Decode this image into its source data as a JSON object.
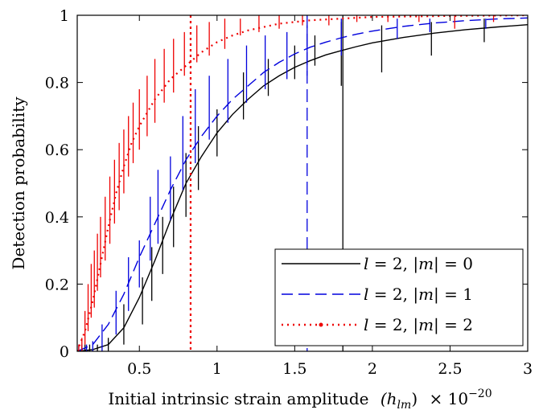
{
  "chart_data": {
    "type": "line",
    "title": "",
    "xlabel": "Initial intrinsic strain amplitude (h_lm) × 10⁻²⁰",
    "xlabel_text": "Initial intrinsic strain amplitude",
    "xlabel_symbol": "(h",
    "xlabel_subscript": "lm",
    "xlabel_close": ")",
    "x_multiplier": "× 10",
    "x_multiplier_exp": "−20",
    "ylabel": "Detection probability",
    "xlim": [
      0.1,
      3.0
    ],
    "ylim": [
      0,
      1
    ],
    "xticks": [
      "0.5",
      "1",
      "1.5",
      "2",
      "2.5",
      "3"
    ],
    "xtick_values": [
      0.5,
      1,
      1.5,
      2,
      2.5,
      3
    ],
    "yticks": [
      "0",
      "0.2",
      "0.4",
      "0.6",
      "0.8",
      "1"
    ],
    "ytick_values": [
      0,
      0.2,
      0.4,
      0.6,
      0.8,
      1
    ],
    "grid": false,
    "legend_position": "bottom-right",
    "series": [
      {
        "name": "l = 2, |m| = 0",
        "color": "#000000",
        "style": "solid",
        "curve": {
          "x": [
            0.1,
            0.2,
            0.3,
            0.4,
            0.5,
            0.6,
            0.7,
            0.8,
            0.9,
            1.0,
            1.1,
            1.2,
            1.3,
            1.4,
            1.5,
            1.6,
            1.7,
            1.8,
            1.9,
            2.0,
            2.2,
            2.4,
            2.6,
            2.8,
            3.0
          ],
          "y": [
            0.0,
            0.005,
            0.02,
            0.07,
            0.16,
            0.27,
            0.39,
            0.5,
            0.58,
            0.65,
            0.705,
            0.75,
            0.79,
            0.82,
            0.845,
            0.865,
            0.882,
            0.895,
            0.907,
            0.918,
            0.934,
            0.947,
            0.957,
            0.965,
            0.972
          ]
        },
        "error_bars": {
          "x": [
            0.13,
            0.15,
            0.18,
            0.23,
            0.3,
            0.4,
            0.52,
            0.58,
            0.65,
            0.72,
            0.8,
            0.88,
            1.0,
            1.17,
            1.33,
            1.5,
            1.63,
            1.8,
            2.06,
            2.38,
            2.72
          ],
          "ylow": [
            0.0,
            0.0,
            0.0,
            0.0,
            0.0,
            0.02,
            0.08,
            0.15,
            0.23,
            0.31,
            0.4,
            0.48,
            0.58,
            0.69,
            0.76,
            0.81,
            0.85,
            0.79,
            0.83,
            0.88,
            0.92
          ],
          "yhigh": [
            0.02,
            0.02,
            0.02,
            0.02,
            0.04,
            0.14,
            0.22,
            0.31,
            0.4,
            0.49,
            0.59,
            0.67,
            0.72,
            0.83,
            0.87,
            0.91,
            0.94,
            0.98,
            0.97,
            0.98,
            0.99
          ]
        },
        "vline_x": 1.81
      },
      {
        "name": "l = 2, |m| = 1",
        "color": "#0000dd",
        "style": "dashed",
        "curve": {
          "x": [
            0.1,
            0.2,
            0.3,
            0.4,
            0.5,
            0.6,
            0.7,
            0.8,
            0.9,
            1.0,
            1.1,
            1.2,
            1.3,
            1.4,
            1.5,
            1.6,
            1.7,
            1.8,
            1.9,
            2.0,
            2.2,
            2.4,
            2.6,
            2.8,
            3.0
          ],
          "y": [
            0.0,
            0.02,
            0.08,
            0.17,
            0.28,
            0.38,
            0.48,
            0.57,
            0.64,
            0.7,
            0.75,
            0.79,
            0.83,
            0.86,
            0.885,
            0.905,
            0.92,
            0.933,
            0.944,
            0.953,
            0.967,
            0.977,
            0.984,
            0.989,
            0.992
          ]
        },
        "error_bars": {
          "x": [
            0.11,
            0.13,
            0.16,
            0.2,
            0.26,
            0.35,
            0.43,
            0.5,
            0.57,
            0.62,
            0.7,
            0.78,
            0.86,
            0.95,
            1.07,
            1.19,
            1.31,
            1.45,
            1.58,
            1.8,
            2.16,
            2.37,
            2.73
          ],
          "ylow": [
            0.0,
            0.0,
            0.0,
            0.0,
            0.0,
            0.05,
            0.12,
            0.19,
            0.27,
            0.32,
            0.39,
            0.48,
            0.56,
            0.63,
            0.68,
            0.74,
            0.78,
            0.81,
            0.82,
            0.88,
            0.93,
            0.95,
            0.96
          ],
          "yhigh": [
            0.02,
            0.02,
            0.02,
            0.03,
            0.08,
            0.18,
            0.28,
            0.33,
            0.46,
            0.54,
            0.58,
            0.7,
            0.78,
            0.82,
            0.87,
            0.91,
            0.94,
            0.95,
            0.97,
            0.99,
            0.99,
            0.99,
            0.99
          ]
        },
        "vline_x": 1.58
      },
      {
        "name": "l = 2, |m| = 2",
        "color": "#ee0000",
        "style": "dotted",
        "curve": {
          "x": [
            0.1,
            0.15,
            0.2,
            0.25,
            0.3,
            0.35,
            0.4,
            0.45,
            0.5,
            0.55,
            0.6,
            0.65,
            0.7,
            0.8,
            0.9,
            1.0,
            1.1,
            1.2,
            1.3,
            1.4,
            1.5,
            1.6,
            1.8,
            2.0,
            2.5,
            3.0
          ],
          "y": [
            0.0,
            0.06,
            0.15,
            0.26,
            0.37,
            0.47,
            0.55,
            0.62,
            0.67,
            0.71,
            0.75,
            0.78,
            0.81,
            0.85,
            0.89,
            0.92,
            0.94,
            0.955,
            0.965,
            0.975,
            0.98,
            0.985,
            0.99,
            0.995,
            0.998,
            1.0
          ]
        },
        "error_bars": {
          "x": [
            0.11,
            0.13,
            0.15,
            0.17,
            0.19,
            0.21,
            0.23,
            0.25,
            0.28,
            0.31,
            0.34,
            0.37,
            0.4,
            0.43,
            0.46,
            0.5,
            0.55,
            0.6,
            0.66,
            0.72,
            0.79,
            0.87,
            0.95,
            1.05,
            1.15,
            1.27,
            1.4,
            1.55,
            1.72,
            1.9,
            2.1,
            2.3,
            2.53,
            2.78
          ],
          "ylow": [
            0.0,
            0.0,
            0.02,
            0.06,
            0.1,
            0.13,
            0.18,
            0.22,
            0.27,
            0.32,
            0.38,
            0.42,
            0.47,
            0.52,
            0.56,
            0.6,
            0.64,
            0.68,
            0.74,
            0.77,
            0.82,
            0.86,
            0.88,
            0.9,
            0.94,
            0.95,
            0.96,
            0.97,
            0.97,
            0.98,
            0.98,
            0.98,
            0.96,
            0.98
          ],
          "yhigh": [
            0.02,
            0.04,
            0.12,
            0.2,
            0.26,
            0.3,
            0.35,
            0.4,
            0.46,
            0.52,
            0.57,
            0.62,
            0.66,
            0.7,
            0.74,
            0.78,
            0.82,
            0.87,
            0.9,
            0.93,
            0.95,
            0.97,
            0.98,
            0.99,
            0.99,
            1.0,
            1.0,
            1.0,
            1.0,
            1.0,
            1.0,
            1.0,
            1.0,
            1.0
          ]
        },
        "vline_x": 0.83
      }
    ],
    "legend": [
      {
        "prefix": "l",
        "mid": " = 2,  |",
        "var": "m",
        "suffix": "| = 0"
      },
      {
        "prefix": "l",
        "mid": " = 2,  |",
        "var": "m",
        "suffix": "| = 1"
      },
      {
        "prefix": "l",
        "mid": " = 2,  |",
        "var": "m",
        "suffix": "| = 2"
      }
    ]
  }
}
